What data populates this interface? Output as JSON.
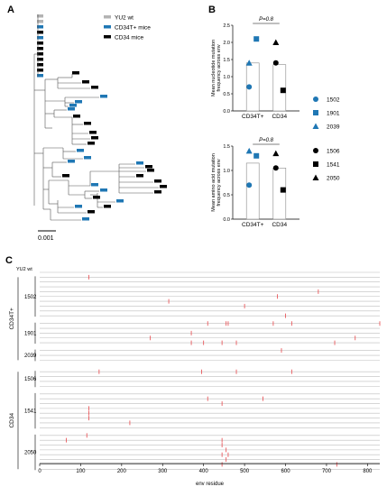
{
  "panels": {
    "a": "A",
    "b": "B",
    "c": "C"
  },
  "colors": {
    "wt": "#b3b3b3",
    "cd34t": "#1f77b4",
    "cd34": "#000000",
    "mutation": "#e8464a",
    "line": "#bdbdbd"
  },
  "tree": {
    "legend": [
      {
        "label": "YU2 wt",
        "color": "#b3b3b3"
      },
      {
        "label": "CD34T+ mice",
        "color": "#1f77b4"
      },
      {
        "label": "CD34 mice",
        "color": "#000000"
      }
    ],
    "scale_label": "0.001"
  },
  "chart_data": [
    {
      "type": "bar",
      "ylabel": "Mean nucleotide mutation frequency across env",
      "categories": [
        "CD34T+",
        "CD34"
      ],
      "values": [
        1.4,
        1.35
      ],
      "ylim": [
        0,
        2.5
      ],
      "yticks": [
        "0.0",
        "0.5",
        "1.0",
        "1.5",
        "2.0",
        "2.5"
      ],
      "pvalue": "P=0.8",
      "points": {
        "CD34T+": [
          {
            "mouse": "1502",
            "value": 0.7
          },
          {
            "mouse": "1901",
            "value": 2.1
          },
          {
            "mouse": "2039",
            "value": 1.4
          }
        ],
        "CD34": [
          {
            "mouse": "1506",
            "value": 1.4
          },
          {
            "mouse": "1541",
            "value": 0.6
          },
          {
            "mouse": "2050",
            "value": 2.0
          }
        ]
      }
    },
    {
      "type": "bar",
      "ylabel": "Mean amino acid mutation frequency across env",
      "categories": [
        "CD34T+",
        "CD34"
      ],
      "values": [
        1.15,
        1.05
      ],
      "ylim": [
        0,
        1.5
      ],
      "yticks": [
        "0.0",
        "0.5",
        "1.0",
        "1.5"
      ],
      "pvalue": "P=0.8",
      "points": {
        "CD34T+": [
          {
            "mouse": "1502",
            "value": 0.7
          },
          {
            "mouse": "1901",
            "value": 1.3
          },
          {
            "mouse": "2039",
            "value": 1.4
          }
        ],
        "CD34": [
          {
            "mouse": "1506",
            "value": 1.05
          },
          {
            "mouse": "1541",
            "value": 0.6
          },
          {
            "mouse": "2050",
            "value": 1.35
          }
        ]
      }
    },
    {
      "type": "scatter",
      "xlabel": "env residue",
      "xlim": [
        0,
        830
      ],
      "xticks": [
        0,
        100,
        200,
        300,
        400,
        500,
        600,
        700,
        800
      ],
      "reference": "YU2 wt",
      "groups": [
        {
          "label": "CD34T+",
          "mice": [
            {
              "id": "1502",
              "seqs": [
                [
                  120
                ],
                [],
                [],
                [
                  680
                ],
                [
                  580
                ],
                [
                  315
                ],
                [
                  500
                ],
                [],
                [
                  600
                ]
              ]
            },
            {
              "id": "1901",
              "seqs": [
                [
                  410,
                  455,
                  460,
                  570,
                  615,
                  830
                ],
                [],
                [
                  370
                ],
                [
                  270,
                  770
                ],
                [
                  370,
                  400,
                  445,
                  480,
                  720
                ]
              ]
            },
            {
              "id": "2039",
              "seqs": [
                [
                  590
                ],
                [],
                []
              ]
            }
          ]
        },
        {
          "label": "CD34",
          "mice": [
            {
              "id": "1506",
              "seqs": [
                [
                  145,
                  395,
                  480,
                  615
                ],
                [],
                [],
                []
              ]
            },
            {
              "id": "1541",
              "seqs": [
                [],
                [
                  410,
                  545
                ],
                [
                  445
                ],
                [
                  120
                ],
                [
                  120
                ],
                [
                  120
                ],
                [
                  220
                ],
                []
              ]
            },
            {
              "id": "2050",
              "seqs": [
                [
                  115
                ],
                [
                  65,
                  445
                ],
                [
                  445
                ],
                [
                  455
                ],
                [
                  445,
                  460
                ],
                [
                  455
                ],
                [
                  445,
                  725
                ],
                []
              ]
            }
          ]
        }
      ],
      "mouse_legend": {
        "CD34T+": [
          {
            "id": "1502",
            "shape": "circle"
          },
          {
            "id": "1901",
            "shape": "square"
          },
          {
            "id": "2039",
            "shape": "triangle"
          }
        ],
        "CD34": [
          {
            "id": "1506",
            "shape": "circle"
          },
          {
            "id": "1541",
            "shape": "square"
          },
          {
            "id": "2050",
            "shape": "triangle"
          }
        ]
      }
    }
  ]
}
